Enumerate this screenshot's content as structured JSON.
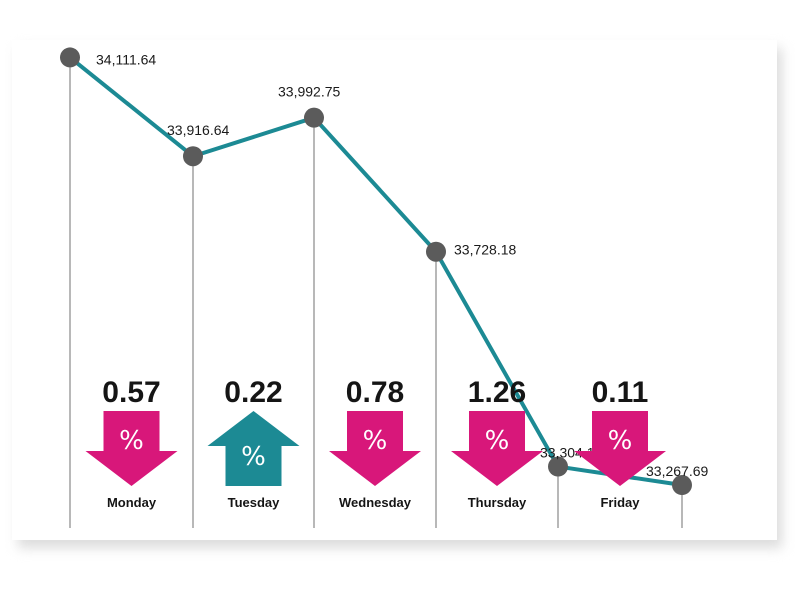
{
  "chart_data": {
    "type": "line",
    "title": "",
    "xlabel": "",
    "ylabel": "",
    "ylim": [
      33100,
      34150
    ],
    "grid": false,
    "x": [
      "Monday",
      "Tuesday",
      "Wednesday",
      "Thursday",
      "Friday",
      ""
    ],
    "values": [
      34111.64,
      33916.64,
      33992.75,
      33728.18,
      33304.16,
      33267.69
    ],
    "point_labels": [
      "34,111.64",
      "33,916.64",
      "33,992.75",
      "33,728.18",
      "33,304.16",
      "33,267.69"
    ],
    "daily_changes": [
      {
        "day": "Monday",
        "change_label": "0.57",
        "direction": "down"
      },
      {
        "day": "Tuesday",
        "change_label": "0.22",
        "direction": "up"
      },
      {
        "day": "Wednesday",
        "change_label": "0.78",
        "direction": "down"
      },
      {
        "day": "Thursday",
        "change_label": "1.26",
        "direction": "down"
      },
      {
        "day": "Friday",
        "change_label": "0.11",
        "direction": "down"
      }
    ],
    "percent_symbol": "%"
  },
  "colors": {
    "line": "#1c8a94",
    "marker": "#5b5b5b",
    "down_arrow": "#d8177a",
    "up_arrow": "#1c8a94",
    "stem": "#9a9a9a"
  }
}
